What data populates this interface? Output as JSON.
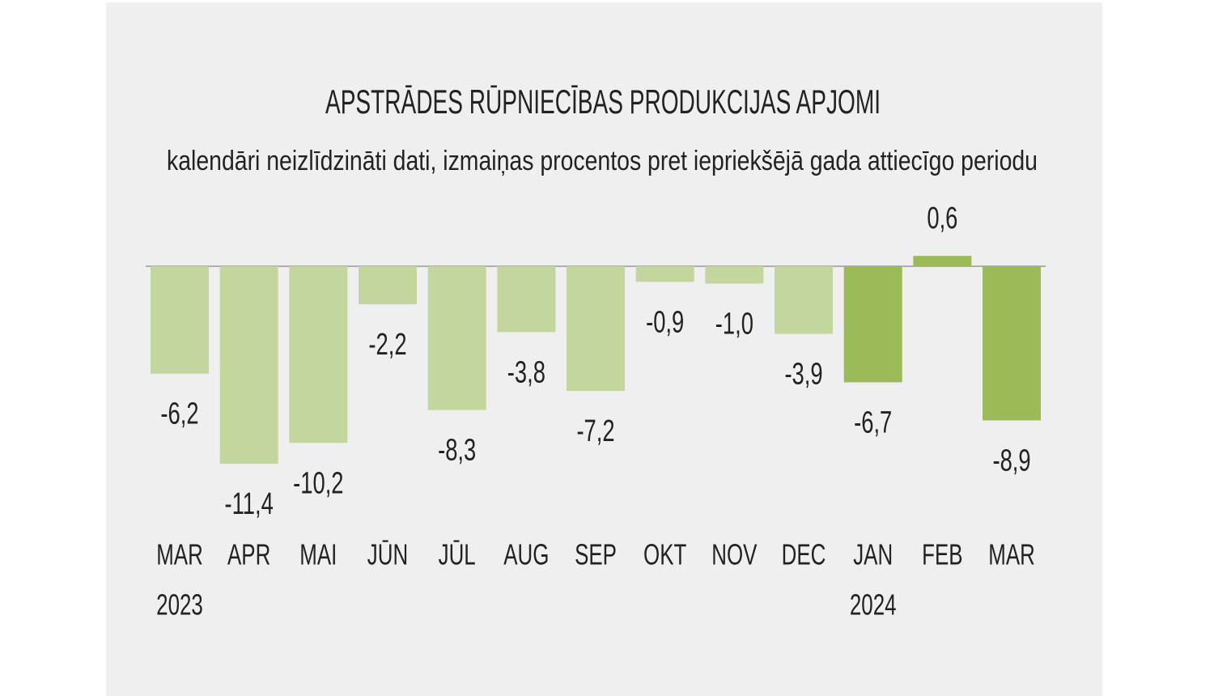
{
  "chart_data": {
    "type": "bar",
    "title": "APSTRĀDES RŪPNIECĪBAS PRODUKCIJAS APJOMI",
    "subtitle": "kalendāri neizlīdzināti dati, izmaiņas procentos pret iepriekšējā gada attiecīgo periodu",
    "categories": [
      "MAR",
      "APR",
      "MAI",
      "JŪN",
      "JŪL",
      "AUG",
      "SEP",
      "OKT",
      "NOV",
      "DEC",
      "JAN",
      "FEB",
      "MAR"
    ],
    "years": [
      "2023",
      null,
      null,
      null,
      null,
      null,
      null,
      null,
      null,
      null,
      "2024",
      null,
      null
    ],
    "values": [
      -6.2,
      -11.4,
      -10.2,
      -2.2,
      -8.3,
      -3.8,
      -7.2,
      -0.9,
      -1.0,
      -3.9,
      -6.7,
      0.6,
      -8.9
    ],
    "value_labels": [
      "-6,2",
      "-11,4",
      "-10,2",
      "-2,2",
      "-8,3",
      "-3,8",
      "-7,2",
      "-0,9",
      "-1,0",
      "-3,9",
      "-6,7",
      "0,6",
      "-8,9"
    ],
    "colors": [
      "#c3d69d",
      "#c3d69d",
      "#c3d69d",
      "#c3d69d",
      "#c3d69d",
      "#c3d69d",
      "#c3d69d",
      "#c3d69d",
      "#c3d69d",
      "#c3d69d",
      "#9bbb59",
      "#9bbb59",
      "#9bbb59"
    ],
    "ylim": [
      -12,
      1
    ]
  }
}
